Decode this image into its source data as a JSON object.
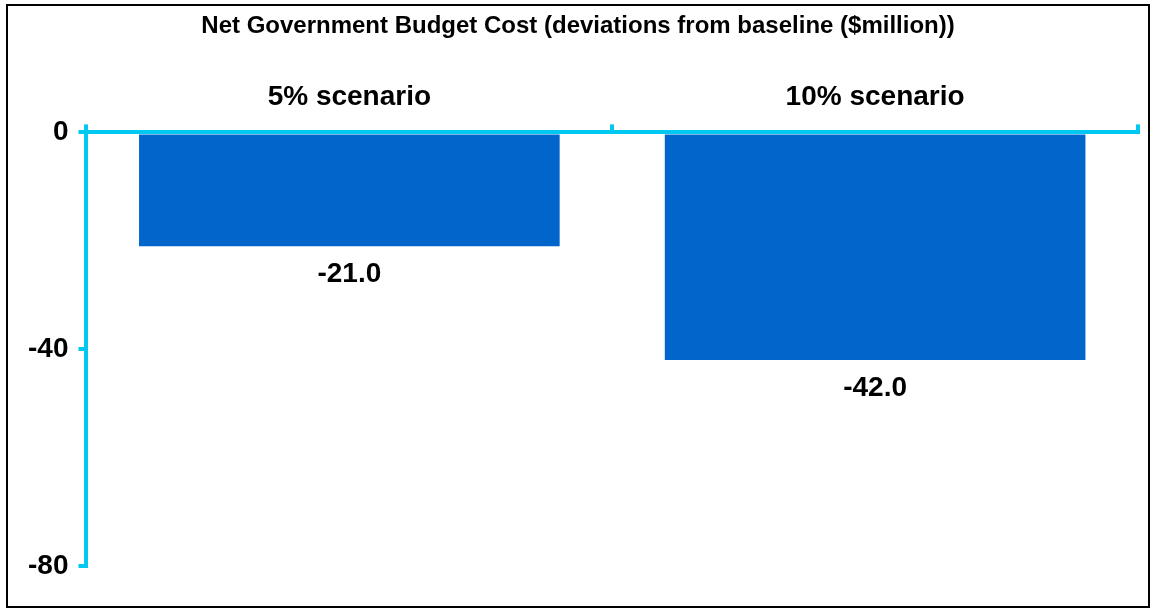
{
  "chart_data": {
    "type": "bar",
    "title": "Net Government Budget Cost (deviations from baseline ($million))",
    "categories": [
      "5% scenario",
      "10% scenario"
    ],
    "values": [
      -21.0,
      -42.0
    ],
    "color": "#0066cc",
    "value_labels": [
      "-21.0",
      "-42.0"
    ],
    "ylim": [
      -80,
      0
    ],
    "yticks": [
      -80,
      -40,
      0
    ],
    "grid": false,
    "legend": false
  }
}
